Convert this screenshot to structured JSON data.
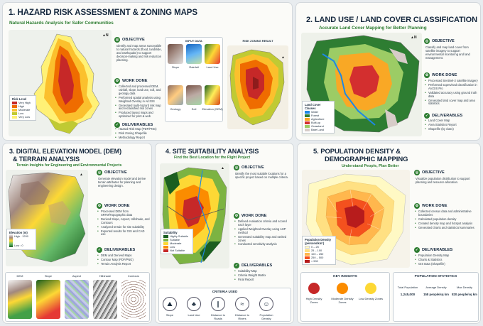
{
  "p1": {
    "title": "1. HAZARD RISK ASSESSMENT & ZONING MAPS",
    "subtitle": "Natural Hazards Analysis for Safer Communities",
    "legend_title": "Risk Level",
    "legend": [
      {
        "label": "Very High",
        "color": "#c62828"
      },
      {
        "label": "High",
        "color": "#ef6c00"
      },
      {
        "label": "Moderate",
        "color": "#fbc02d"
      },
      {
        "label": "Low",
        "color": "#c0ca33"
      },
      {
        "label": "Very Low",
        "color": "#fff176"
      }
    ],
    "input_label": "INPUT DATA",
    "result_label": "RISK ZONING RESULT",
    "inputs": [
      "Slope",
      "Rainfall",
      "Land Use",
      "Geology",
      "Soil",
      "Elevation (DEM)"
    ],
    "objective_head": "OBJECTIVE",
    "objective": "Identify and map areas susceptible to natural hazards (flood, landslide, and earthquake) to support decision-making and risk reduction planning.",
    "work_head": "WORK DONE",
    "work": [
      "Collected and processed DEM, rainfall, slope, land use, soil, and geology data",
      "Performed spatial analysis using Weighted Overlay in ArcGIS",
      "Generated multi-hazard risk map and reclassified risk zones",
      "Produced layout maps and optimized for print & web"
    ],
    "deliv_head": "DELIVERABLES",
    "deliv": [
      "Hazard Risk Map (PDF/PNG)",
      "Risk Zoning Shapefile",
      "Methodology Report"
    ]
  },
  "p2": {
    "title": "2. LAND USE / LAND COVER CLASSIFICATION",
    "subtitle": "Accurate Land Cover Mapping for Better Planning",
    "legend_title": "Land Cover Classes",
    "legend": [
      {
        "label": "Water",
        "color": "#1e88e5"
      },
      {
        "label": "Forest",
        "color": "#2e7d32"
      },
      {
        "label": "Agriculture",
        "color": "#f9a825"
      },
      {
        "label": "Built-up",
        "color": "#d32f2f"
      },
      {
        "label": "Grassland",
        "color": "#9ccc65"
      },
      {
        "label": "Bare Land",
        "color": "#d7ccc8"
      }
    ],
    "objective_head": "OBJECTIVE",
    "objective": "Classify and map land cover from satellite imagery to support environmental monitoring and land management.",
    "work_head": "WORK DONE",
    "work": [
      "Processed Sentinel-2 satellite imagery",
      "Performed supervised classification in ArcGIS Pro",
      "Validated accuracy using ground truth data",
      "Generated land cover map and area statistics"
    ],
    "deliv_head": "DELIVERABLES",
    "deliv": [
      "Land Cover Map",
      "Area Statistics Report",
      "Shapefile (by class)"
    ]
  },
  "p3": {
    "title1": "3. DIGITAL ELEVATION MODEL (DEM)",
    "title2": "& TERRAIN ANALYSIS",
    "subtitle": "Terrain Insights for Engineering and Environmental Projects",
    "legend_title": "Elevation (m)",
    "legend_high": "High : 1200",
    "legend_low": "Low : 0",
    "objective_head": "OBJECTIVE",
    "objective": "Generate elevation model and derive terrain attributes for planning and engineering design.",
    "work_head": "WORK DONE",
    "work": [
      "Processed DEM from SRTM/Topographic data",
      "Derived Slope, Aspect, Hillshade, and Contours",
      "Analyzed terrain for site suitability",
      "Exported results for GIS and CAD use"
    ],
    "deliv_head": "DELIVERABLES",
    "deliv": [
      "DEM and Derived Maps",
      "Contour Map (PDF/PNG)",
      "Terrain Analysis Report"
    ],
    "thumbs": [
      "DEM",
      "Slope",
      "Aspect",
      "Hillshade",
      "Contours"
    ]
  },
  "p4": {
    "title": "4. SITE SUITABILITY ANALYSIS",
    "subtitle": "Find the Best Location for the Right Project",
    "legend_title": "Suitability",
    "legend": [
      {
        "label": "Highly Suitable",
        "color": "#1b5e20"
      },
      {
        "label": "Suitable",
        "color": "#7cb342"
      },
      {
        "label": "Moderate",
        "color": "#fdd835"
      },
      {
        "label": "Low",
        "color": "#fb8c00"
      },
      {
        "label": "Not Suitable",
        "color": "#c62828"
      }
    ],
    "objective_head": "OBJECTIVE",
    "objective": "Identify the most suitable locations for a specific project based on multiple criteria.",
    "work_head": "WORK DONE",
    "work": [
      "Defined evaluation criteria and scored each layer",
      "Applied Weighted Overlay using AHP method",
      "Generated suitability map and ranked zones",
      "Conducted sensitivity analysis"
    ],
    "deliv_head": "DELIVERABLES",
    "deliv": [
      "Suitability Map",
      "Criteria Weight Matrix",
      "Final Report"
    ],
    "criteria_head": "CRITERIA USED",
    "criteria": [
      {
        "label": "Slope",
        "icon": "mountain-icon"
      },
      {
        "label": "Land Use",
        "icon": "tree-icon"
      },
      {
        "label": "Distance to Roads",
        "icon": "road-icon"
      },
      {
        "label": "Distance to Rivers",
        "icon": "river-icon"
      },
      {
        "label": "Population Density",
        "icon": "people-icon"
      }
    ]
  },
  "p5": {
    "title1": "5. POPULATION DENSITY &",
    "title2": "DEMOGRAPHIC MAPPING",
    "subtitle": "Understand People, Plan Better",
    "legend_title": "Population Density (persons/km²)",
    "legend": [
      {
        "label": "0 – 25",
        "color": "#fff9c4"
      },
      {
        "label": "25 – 100",
        "color": "#ffe082"
      },
      {
        "label": "100 – 250",
        "color": "#ffb74d"
      },
      {
        "label": "250 – 500",
        "color": "#f4511e"
      },
      {
        "label": "> 500",
        "color": "#b71c1c"
      }
    ],
    "objective_head": "OBJECTIVE",
    "objective": "Visualize population distribution to support planning and resource allocation.",
    "work_head": "WORK DONE",
    "work": [
      "Collected census data and administrative boundaries",
      "Calculated population density",
      "Created density map and hotspot analysis",
      "Generated charts and statistical summaries"
    ],
    "deliv_head": "DELIVERABLES",
    "deliv": [
      "Population Density Map",
      "Charts & Statistics",
      "GIS Data (Shapefile)"
    ],
    "insights_head": "KEY INSIGHTS",
    "insights": [
      {
        "label": "High Density Zones",
        "color": "#c62828"
      },
      {
        "label": "Moderate Density Zones",
        "color": "#fb8c00"
      },
      {
        "label": "Low Density Zones",
        "color": "#fdd835"
      }
    ],
    "stats_head": "POPULATION STATISTICS",
    "stats": [
      {
        "label": "Total Population",
        "value": "1,245,000"
      },
      {
        "label": "Average Density",
        "value": "158 people/sq km"
      },
      {
        "label": "Max Density",
        "value": "820 people/sq km"
      }
    ]
  }
}
